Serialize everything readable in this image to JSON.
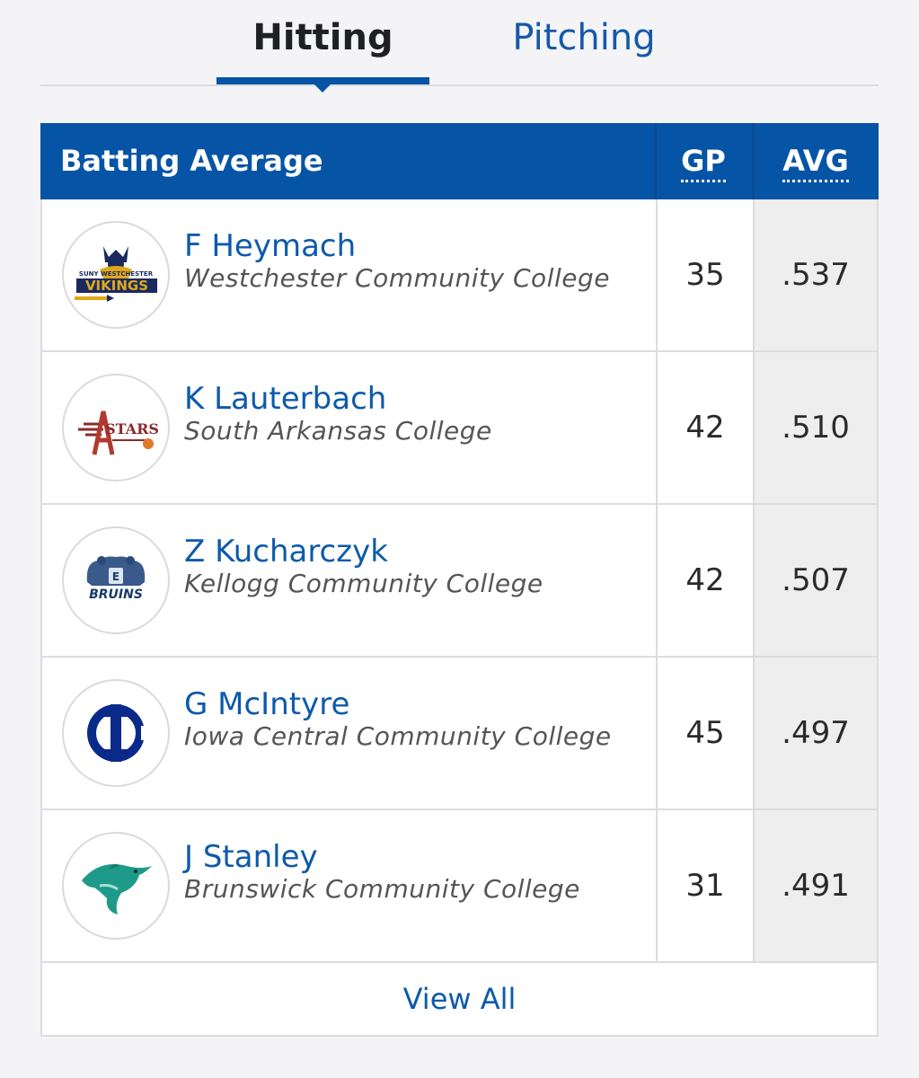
{
  "tabs": [
    {
      "label": "Hitting",
      "active": true
    },
    {
      "label": "Pitching",
      "active": false
    }
  ],
  "table": {
    "title": "Batting Average",
    "columns": {
      "gp": "GP",
      "avg": "AVG"
    },
    "rows": [
      {
        "name": "F Heymach",
        "school": "Westchester Community College",
        "gp": "35",
        "avg": ".537",
        "logo": "vikings-logo"
      },
      {
        "name": "K Lauterbach",
        "school": "South Arkansas College",
        "gp": "42",
        "avg": ".510",
        "logo": "stars-logo"
      },
      {
        "name": "Z Kucharczyk",
        "school": "Kellogg Community College",
        "gp": "42",
        "avg": ".507",
        "logo": "bruins-logo"
      },
      {
        "name": "G McIntyre",
        "school": "Iowa Central Community College",
        "gp": "45",
        "avg": ".497",
        "logo": "iowa-central-logo"
      },
      {
        "name": "J Stanley",
        "school": "Brunswick Community College",
        "gp": "31",
        "avg": ".491",
        "logo": "dolphin-logo"
      }
    ],
    "view_all": "View All"
  },
  "logo_text": {
    "vikings_small": "SUNY WESTCHESTER",
    "vikings": "VIKINGS",
    "stars": "STARS",
    "bruins": "BRUINS"
  },
  "colors": {
    "primary": "#0654a6",
    "link": "#0d5aab"
  }
}
